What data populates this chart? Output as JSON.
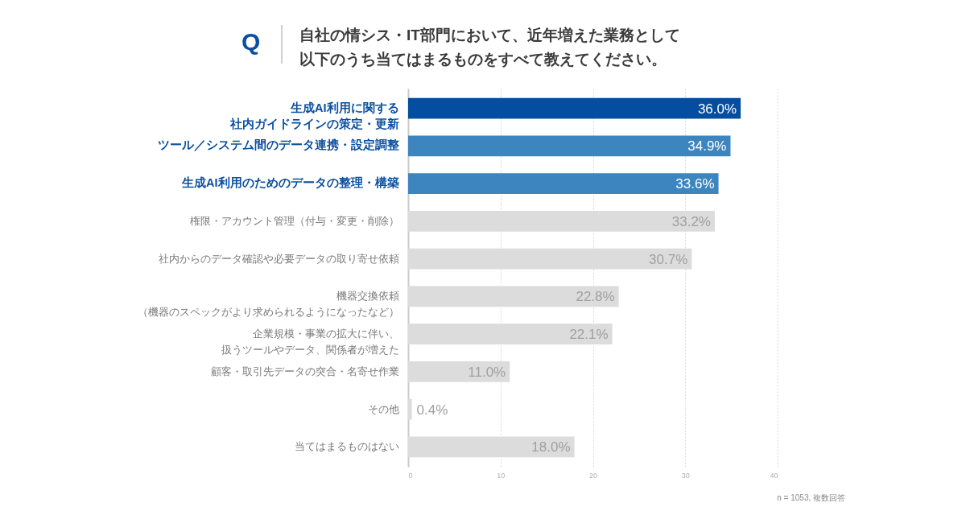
{
  "chart_data": {
    "type": "bar",
    "orientation": "horizontal",
    "title": "自社の情シス・IT部門において、近年増えた業務として以下のうち当てはまるものをすべて教えてください。",
    "categories": [
      "生成AI利用に関する社内ガイドラインの策定・更新",
      "ツール／システム間のデータ連携・設定調整",
      "生成AI利用のためのデータの整理・構築",
      "権限・アカウント管理（付与・変更・削除）",
      "社内からのデータ確認や必要データの取り寄せ依頼",
      "機器交換依頼（機器のスペックがより求められるようになったなど）",
      "企業規模・事業の拡大に伴い、扱うツールやデータ、関係者が増えた",
      "顧客・取引先データの突合・名寄せ作業",
      "その他",
      "当てはまるものはない"
    ],
    "values": [
      36.0,
      34.9,
      33.6,
      33.2,
      30.7,
      22.8,
      22.1,
      11.0,
      0.4,
      18.0
    ],
    "colors": [
      "#034ea0",
      "#3d85bf",
      "#3d85bf",
      "#dcdcdc",
      "#dcdcdc",
      "#dcdcdc",
      "#dcdcdc",
      "#dcdcdc",
      "#dcdcdc",
      "#dcdcdc"
    ],
    "value_labels": [
      "36.0%",
      "34.9%",
      "33.6%",
      "33.2%",
      "30.7%",
      "22.8%",
      "22.1%",
      "11.0%",
      "0.4%",
      "18.0%"
    ],
    "xlim": [
      0,
      40
    ],
    "xticks": [
      0,
      10,
      20,
      30,
      40
    ],
    "grid": "x",
    "annotations": [
      "Q",
      "n = 1053, 複数回答"
    ]
  }
}
